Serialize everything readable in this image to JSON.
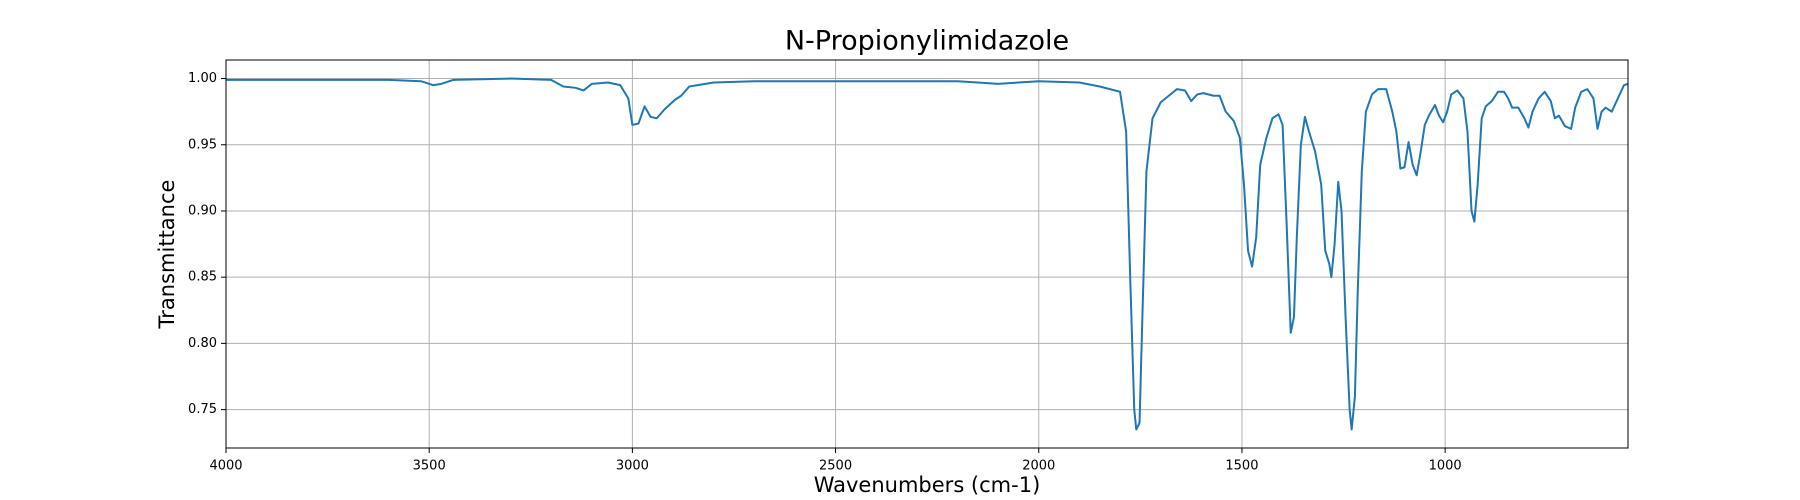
{
  "chart_data": {
    "type": "line",
    "title": "N-Propionylimidazole",
    "x_label": "Wavenumbers (cm-1)",
    "y_label": "Transmittance",
    "color": "#1f77b4",
    "grid": true,
    "xlim": [
      4000,
      550
    ],
    "ylim": [
      0.721,
      1.014
    ],
    "xticks": [
      4000,
      3500,
      3000,
      2500,
      2000,
      1500,
      1000
    ],
    "yticks": [
      0.75,
      {
        "value": 0.8,
        "label": "0.80"
      },
      0.85,
      {
        "value": 0.9,
        "label": "0.90"
      },
      0.95,
      {
        "value": 1.0,
        "label": "1.00"
      }
    ],
    "x": [
      4000,
      3800,
      3600,
      3520,
      3490,
      3470,
      3440,
      3300,
      3200,
      3170,
      3140,
      3120,
      3100,
      3060,
      3030,
      3010,
      3000,
      2985,
      2970,
      2955,
      2940,
      2920,
      2895,
      2880,
      2860,
      2800,
      2700,
      2500,
      2300,
      2200,
      2150,
      2100,
      2050,
      2000,
      1900,
      1850,
      1800,
      1785,
      1775,
      1765,
      1760,
      1752,
      1745,
      1735,
      1720,
      1700,
      1680,
      1660,
      1640,
      1625,
      1610,
      1595,
      1570,
      1555,
      1540,
      1520,
      1505,
      1495,
      1485,
      1475,
      1465,
      1455,
      1440,
      1425,
      1410,
      1400,
      1390,
      1380,
      1372,
      1365,
      1355,
      1345,
      1335,
      1320,
      1305,
      1295,
      1285,
      1280,
      1272,
      1263,
      1255,
      1245,
      1235,
      1230,
      1222,
      1215,
      1205,
      1195,
      1180,
      1165,
      1145,
      1130,
      1120,
      1110,
      1100,
      1090,
      1080,
      1070,
      1060,
      1050,
      1040,
      1025,
      1015,
      1005,
      995,
      985,
      970,
      955,
      945,
      935,
      928,
      920,
      910,
      900,
      885,
      870,
      855,
      845,
      835,
      820,
      805,
      795,
      785,
      770,
      755,
      740,
      730,
      720,
      705,
      690,
      680,
      665,
      650,
      635,
      625,
      615,
      605,
      590,
      575,
      560,
      550
    ],
    "values": [
      0.999,
      0.999,
      0.999,
      0.998,
      0.995,
      0.996,
      0.999,
      1.0,
      0.999,
      0.994,
      0.993,
      0.991,
      0.996,
      0.997,
      0.995,
      0.985,
      0.965,
      0.966,
      0.979,
      0.971,
      0.97,
      0.977,
      0.984,
      0.987,
      0.994,
      0.997,
      0.998,
      0.998,
      0.998,
      0.998,
      0.997,
      0.996,
      0.997,
      0.998,
      0.997,
      0.994,
      0.99,
      0.96,
      0.85,
      0.75,
      0.735,
      0.74,
      0.82,
      0.93,
      0.97,
      0.982,
      0.987,
      0.992,
      0.991,
      0.983,
      0.988,
      0.989,
      0.987,
      0.987,
      0.975,
      0.968,
      0.955,
      0.92,
      0.87,
      0.858,
      0.88,
      0.935,
      0.955,
      0.97,
      0.973,
      0.965,
      0.89,
      0.808,
      0.82,
      0.88,
      0.95,
      0.971,
      0.96,
      0.945,
      0.92,
      0.87,
      0.86,
      0.85,
      0.875,
      0.922,
      0.9,
      0.82,
      0.75,
      0.735,
      0.76,
      0.84,
      0.93,
      0.975,
      0.988,
      0.992,
      0.992,
      0.975,
      0.96,
      0.932,
      0.933,
      0.952,
      0.935,
      0.927,
      0.945,
      0.965,
      0.972,
      0.98,
      0.972,
      0.967,
      0.975,
      0.988,
      0.991,
      0.985,
      0.96,
      0.9,
      0.892,
      0.92,
      0.97,
      0.979,
      0.983,
      0.99,
      0.99,
      0.985,
      0.978,
      0.978,
      0.97,
      0.963,
      0.975,
      0.985,
      0.99,
      0.983,
      0.97,
      0.972,
      0.964,
      0.962,
      0.978,
      0.99,
      0.992,
      0.985,
      0.962,
      0.975,
      0.978,
      0.975,
      0.985,
      0.995,
      0.996
    ]
  }
}
